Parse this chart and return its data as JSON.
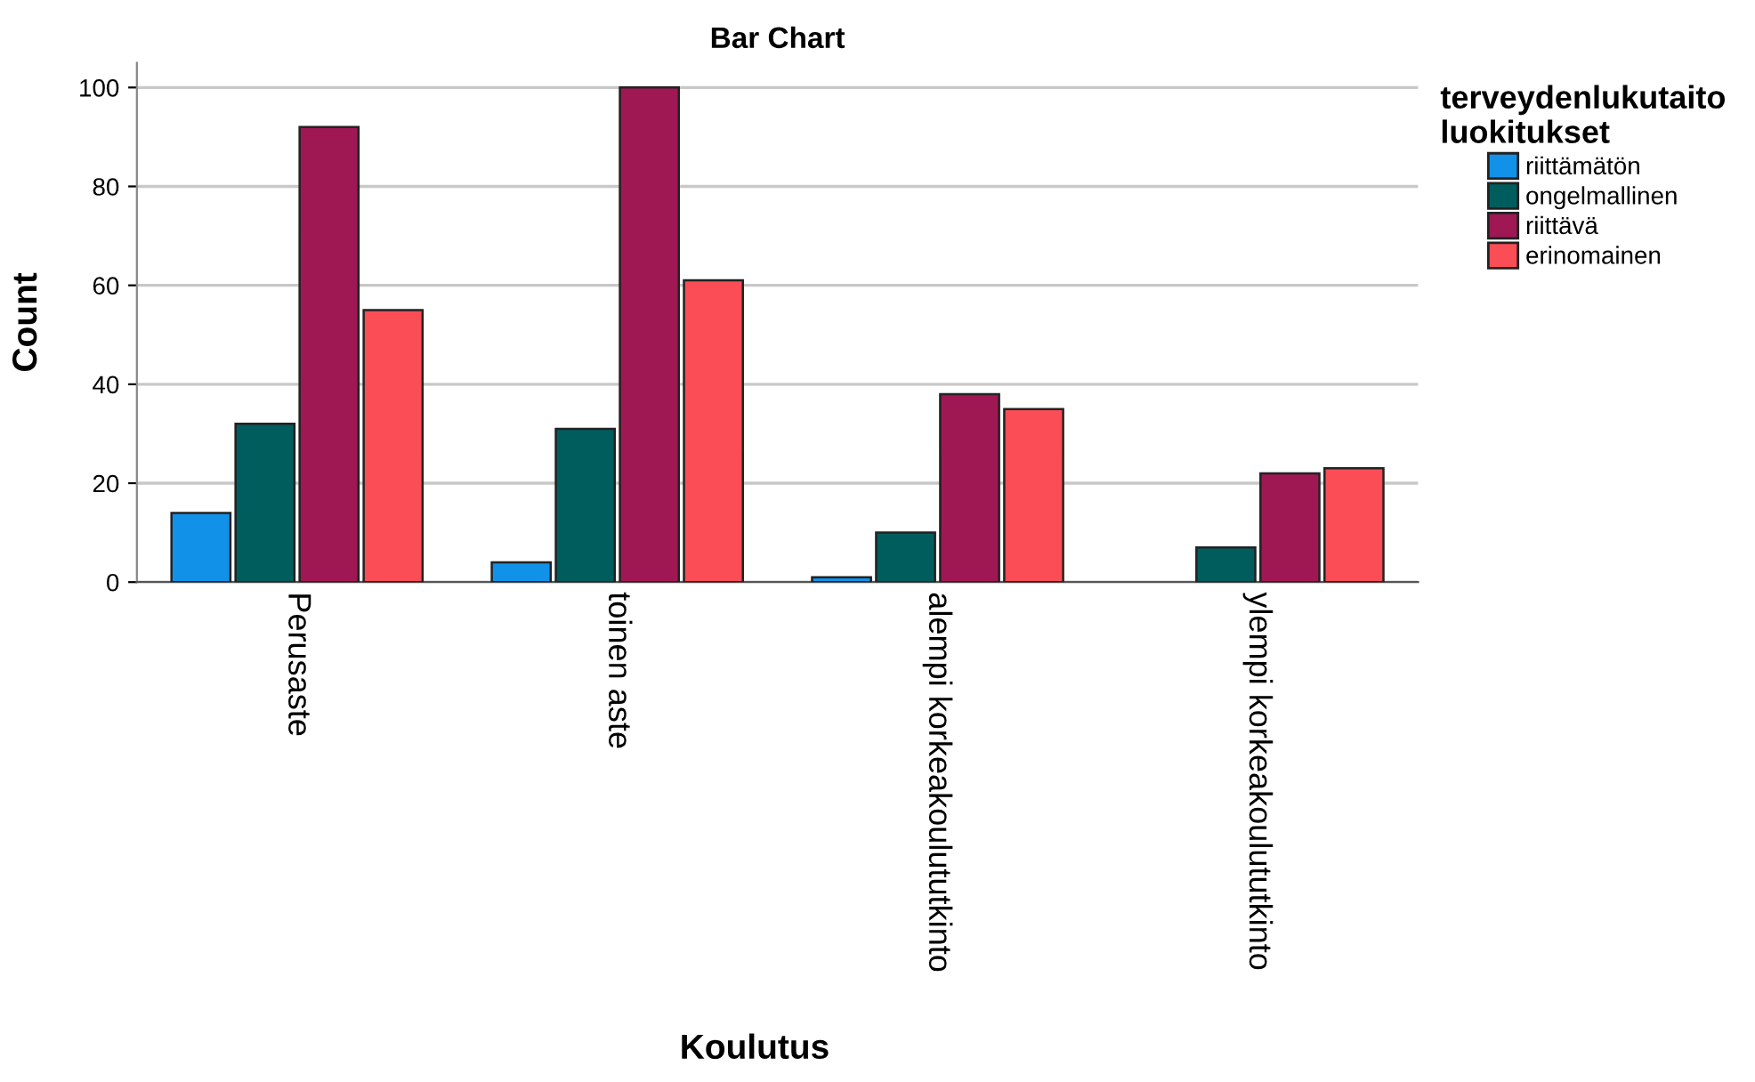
{
  "chart_data": {
    "type": "bar",
    "title": "Bar Chart",
    "xlabel": "Koulutus",
    "ylabel": "Count",
    "legend_title": "terveydenlukutaito\nluokitukset",
    "categories": [
      "Perusaste",
      "toinen aste",
      "alempi korkeakoulututkinto",
      "ylempi korkeakoulututkinto"
    ],
    "series": [
      {
        "name": "riittämätön",
        "color": "#1192e8",
        "values": [
          14,
          4,
          1,
          null
        ]
      },
      {
        "name": "ongelmallinen",
        "color": "#005d5d",
        "values": [
          32,
          31,
          10,
          7
        ]
      },
      {
        "name": "riittävä",
        "color": "#9f1853",
        "values": [
          92,
          100,
          38,
          22
        ]
      },
      {
        "name": "erinomainen",
        "color": "#fa4d56",
        "values": [
          55,
          61,
          35,
          23
        ]
      }
    ],
    "ylim": [
      0,
      105
    ],
    "yticks": [
      0,
      20,
      40,
      60,
      80,
      100
    ],
    "grid": "y",
    "legend": "top right"
  }
}
